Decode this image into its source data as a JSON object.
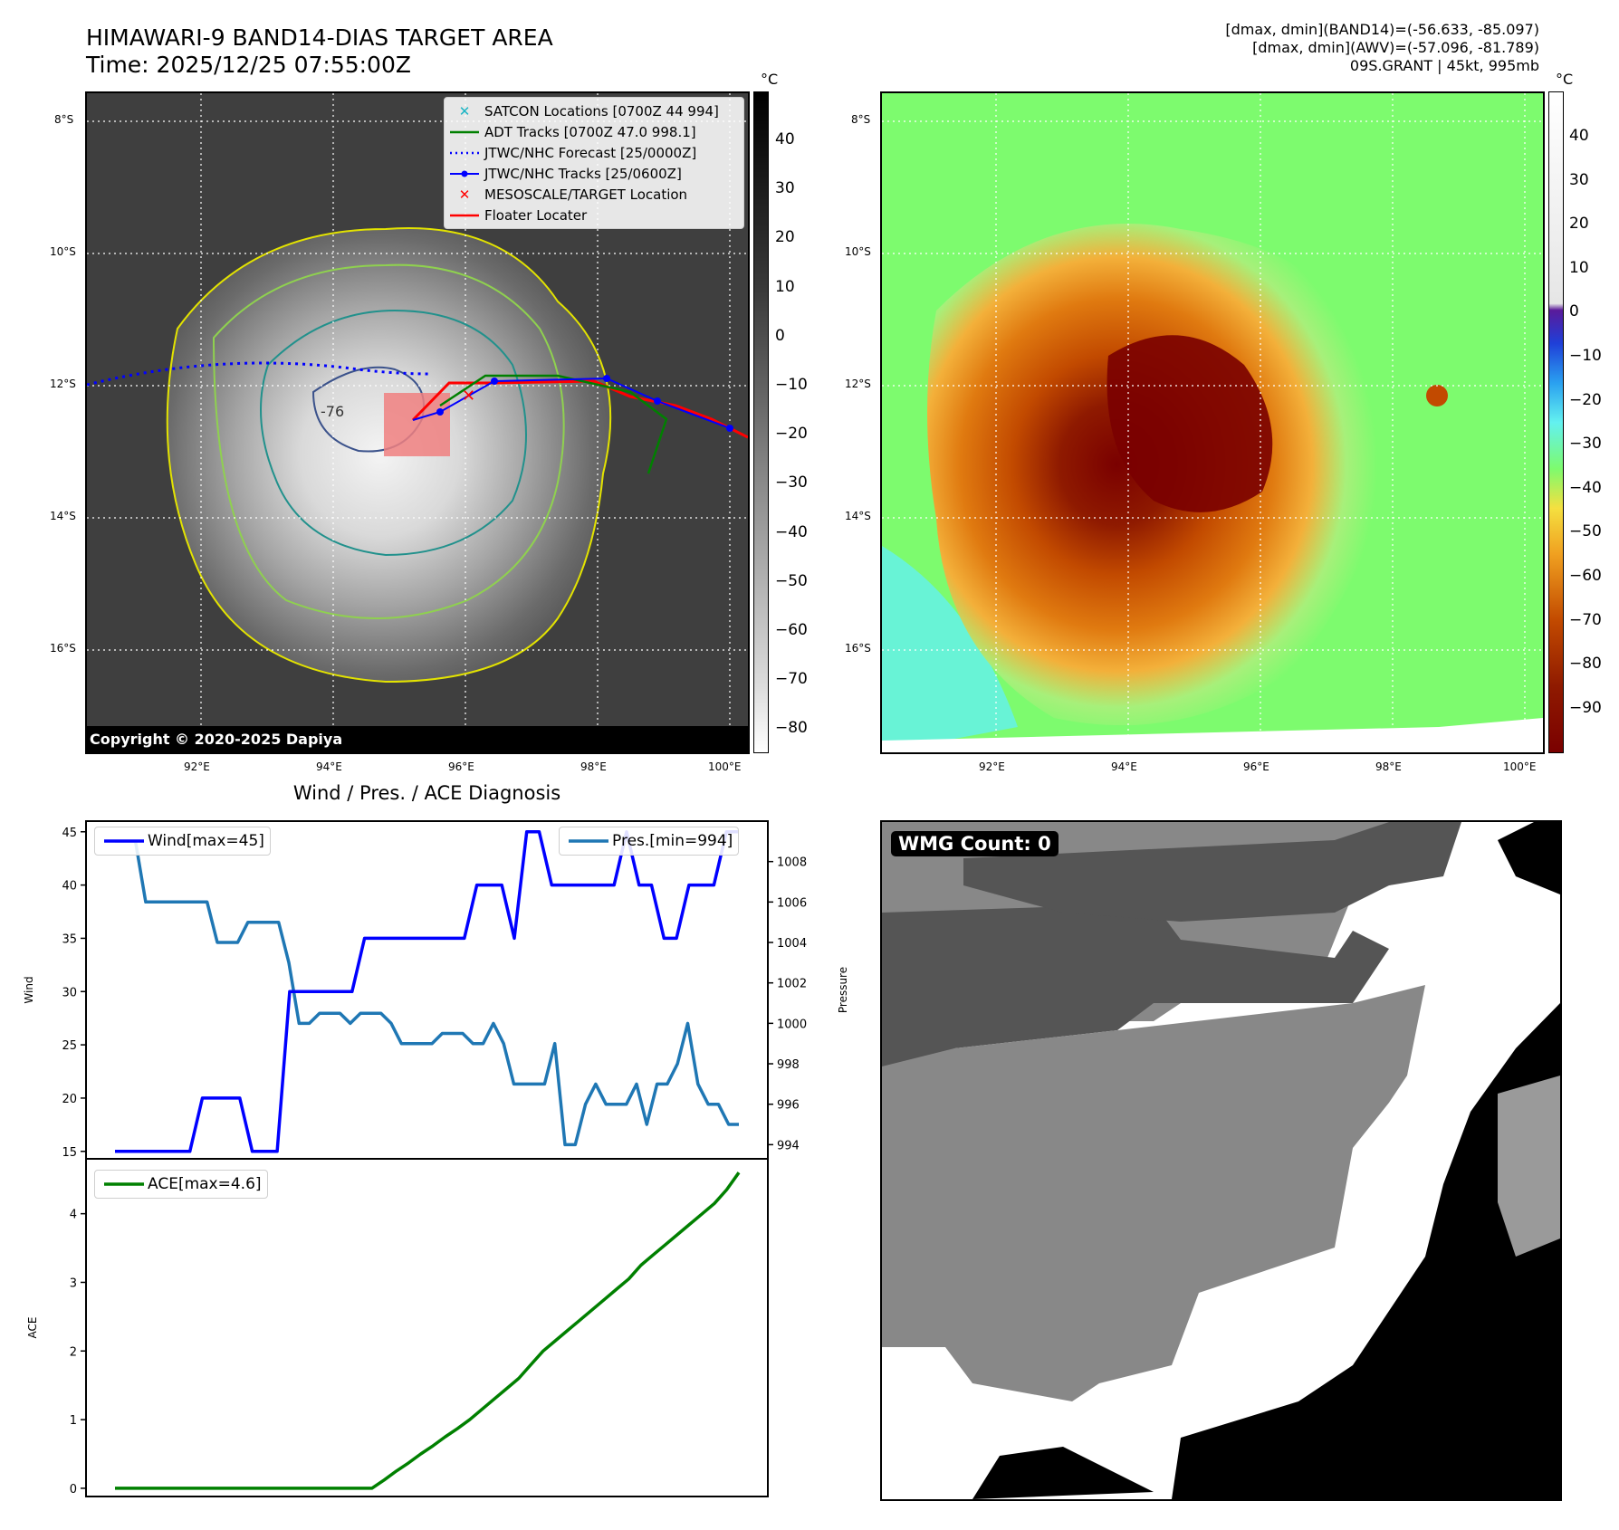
{
  "header": {
    "title_line1": "HIMAWARI-9 BAND14-DIAS TARGET AREA",
    "title_line2": "Time: 2025/12/25 07:55:00Z",
    "info_line1": "[dmax, dmin](BAND14)=(-56.633, -85.097)",
    "info_line2": "[dmax, dmin](AWV)=(-57.096, -81.789)",
    "info_line3": "09S.GRANT | 45kt, 995mb"
  },
  "map": {
    "lat_labels": [
      "8°S",
      "10°S",
      "12°S",
      "14°S",
      "16°S"
    ],
    "lon_labels": [
      "92°E",
      "94°E",
      "96°E",
      "98°E",
      "100°E"
    ],
    "contour_label": "-76",
    "copyright": "Copyright © 2020-2025 Dapiya"
  },
  "legend_ir": [
    {
      "label": "SATCON Locations [0700Z 44 994]",
      "color": "#19b4c4",
      "marker": "x"
    },
    {
      "label": "ADT Tracks [0700Z 47.0 998.1]",
      "color": "#008000",
      "marker": "line"
    },
    {
      "label": "JTWC/NHC Forecast [25/0000Z]",
      "color": "#0000ff",
      "marker": "dotted"
    },
    {
      "label": "JTWC/NHC Tracks [25/0600Z]",
      "color": "#0000ff",
      "marker": "line-dot"
    },
    {
      "label": "MESOSCALE/TARGET Location",
      "color": "#ff0000",
      "marker": "x"
    },
    {
      "label": "Floater Locater",
      "color": "#ff0000",
      "marker": "line"
    }
  ],
  "colorbar_gray": {
    "unit": "°C",
    "ticks": [
      "40",
      "30",
      "20",
      "10",
      "0",
      "−10",
      "−20",
      "−30",
      "−40",
      "−50",
      "−60",
      "−70",
      "−80"
    ]
  },
  "colorbar_color": {
    "unit": "°C",
    "ticks": [
      "40",
      "30",
      "20",
      "10",
      "0",
      "−10",
      "−20",
      "−30",
      "−40",
      "−50",
      "−60",
      "−70",
      "−80",
      "−90"
    ]
  },
  "wmg": {
    "label": "WMG Count: 0"
  },
  "chart_data": [
    {
      "type": "line",
      "title": "Wind / Pres. / ACE Diagnosis",
      "ylabel": "Wind",
      "ylabel_right": "Pressure",
      "ylim": [
        14.3,
        46
      ],
      "y2lim": [
        993.3,
        1010
      ],
      "yticks": [
        15,
        20,
        25,
        30,
        35,
        40,
        45
      ],
      "y2ticks": [
        994,
        996,
        998,
        1000,
        1002,
        1004,
        1006,
        1008
      ],
      "series": [
        {
          "name": "Wind[max=45]",
          "color": "#0000ff",
          "axis": "left",
          "values": [
            15,
            15,
            15,
            15,
            15,
            15,
            15,
            20,
            20,
            20,
            20,
            15,
            15,
            15,
            30,
            30,
            30,
            30,
            30,
            30,
            35,
            35,
            35,
            35,
            35,
            35,
            35,
            35,
            35,
            40,
            40,
            40,
            35,
            45,
            45,
            40,
            40,
            40,
            40,
            40,
            40,
            45,
            40,
            40,
            35,
            35,
            40,
            40,
            40,
            45,
            45
          ]
        },
        {
          "name": "Pres.[min=994]",
          "color": "#1f77b4",
          "axis": "right",
          "values": [
            1009,
            1009,
            1009,
            1006,
            1006,
            1006,
            1006,
            1006,
            1006,
            1006,
            1004,
            1004,
            1004,
            1005,
            1005,
            1005,
            1005,
            1003,
            1000,
            1000,
            1000.5,
            1000.5,
            1000.5,
            1000,
            1000.5,
            1000.5,
            1000.5,
            1000,
            999,
            999,
            999,
            999,
            999.5,
            999.5,
            999.5,
            999,
            999,
            1000,
            999,
            997,
            997,
            997,
            997,
            999,
            994,
            994,
            996,
            997,
            996,
            996,
            996,
            997,
            995,
            997,
            997,
            998,
            1000,
            997,
            996,
            996,
            995,
            995
          ]
        }
      ]
    },
    {
      "type": "line",
      "ylabel": "ACE",
      "ylim": [
        -0.12,
        4.8
      ],
      "yticks": [
        0,
        1,
        2,
        3,
        4
      ],
      "series": [
        {
          "name": "ACE[max=4.6]",
          "color": "#008000",
          "values": [
            0,
            0,
            0,
            0,
            0,
            0,
            0,
            0,
            0,
            0,
            0,
            0,
            0,
            0,
            0,
            0,
            0,
            0,
            0,
            0,
            0,
            0,
            0.12,
            0.25,
            0.37,
            0.5,
            0.62,
            0.75,
            0.87,
            1.0,
            1.15,
            1.3,
            1.45,
            1.6,
            1.8,
            2.0,
            2.15,
            2.3,
            2.45,
            2.6,
            2.75,
            2.9,
            3.05,
            3.25,
            3.4,
            3.55,
            3.7,
            3.85,
            4.0,
            4.15,
            4.35,
            4.6
          ]
        }
      ]
    }
  ]
}
